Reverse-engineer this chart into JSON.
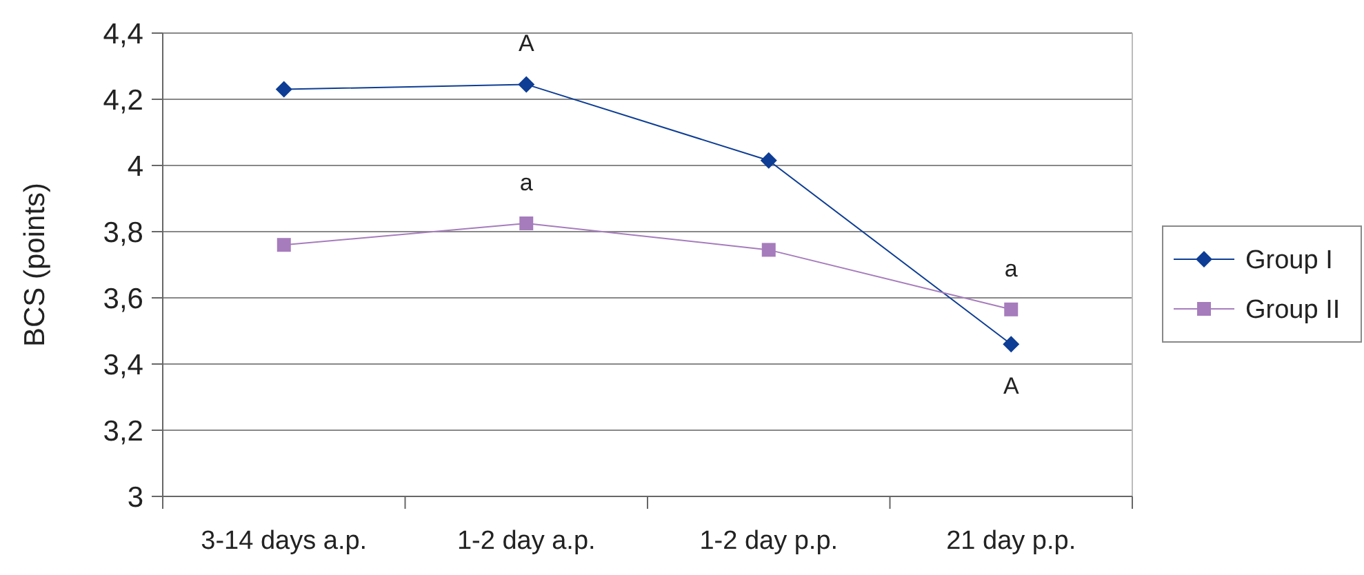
{
  "chart_data": {
    "type": "line",
    "ylabel": "BCS (points)",
    "categories": [
      "3-14 days a.p.",
      "1-2 day a.p.",
      "1-2 day p.p.",
      "21 day p.p."
    ],
    "series": [
      {
        "name": "Group I",
        "color": "#0d3d94",
        "marker": "diamond",
        "values": [
          4.23,
          4.245,
          4.015,
          3.46
        ]
      },
      {
        "name": "Group II",
        "color": "#a67cbc",
        "marker": "square",
        "values": [
          3.76,
          3.825,
          3.745,
          3.565
        ]
      }
    ],
    "ylim": [
      3,
      4.4
    ],
    "yticks": [
      {
        "value": 3,
        "label": "3"
      },
      {
        "value": 3.2,
        "label": "3,2"
      },
      {
        "value": 3.4,
        "label": "3,4"
      },
      {
        "value": 3.6,
        "label": "3,6"
      },
      {
        "value": 3.8,
        "label": "3,8"
      },
      {
        "value": 4,
        "label": "4"
      },
      {
        "value": 4.2,
        "label": "4,2"
      },
      {
        "value": 4.4,
        "label": "4,4"
      }
    ],
    "annotations": [
      {
        "text": "A",
        "x": "1-2 day a.p.",
        "y": 4.245
      },
      {
        "text": "a",
        "x": "1-2 day a.p.",
        "y": 3.825
      },
      {
        "text": "a",
        "x": "21 day p.p.",
        "y": 3.565
      },
      {
        "text": "A",
        "x": "21 day p.p.",
        "y": 3.46
      }
    ],
    "grid": "y",
    "legend": "right"
  }
}
